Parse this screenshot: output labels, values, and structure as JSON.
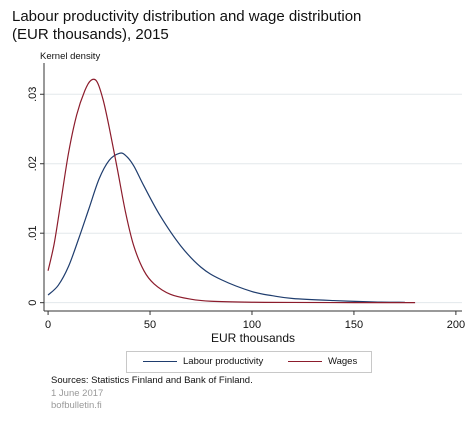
{
  "title_lines": [
    "Labour productivity distribution and wage distribution",
    "(EUR thousands), 2015"
  ],
  "footer": {
    "sources": "Sources: Statistics Finland and Bank of Finland.",
    "date": "1 June 2017",
    "site": "bofbulletin.fi"
  },
  "colors": {
    "productivity": "#1f3d6e",
    "wages": "#8c1c2c",
    "grid": "#e3e8ec",
    "axis": "#333333"
  },
  "chart_data": {
    "type": "line",
    "title": "Labour productivity distribution and wage distribution (EUR thousands), 2015",
    "xlabel": "EUR thousands",
    "ylabel": "Kernel density",
    "xlim": [
      -2,
      203
    ],
    "ylim": [
      -0.0012,
      0.0345
    ],
    "xticks": [
      0,
      50,
      100,
      150,
      200
    ],
    "yticks": [
      0,
      0.01,
      0.02,
      0.03
    ],
    "ytick_labels": [
      "0",
      ".01",
      ".02",
      ".03"
    ],
    "grid": true,
    "legend_position": "bottom",
    "series": [
      {
        "name": "Labour productivity",
        "color": "#1f3d6e",
        "x": [
          0,
          5,
          10,
          15,
          20,
          25,
          30,
          35,
          38,
          42,
          47,
          55,
          65,
          75,
          85,
          100,
          110,
          120,
          140,
          160,
          175
        ],
        "y": [
          0.0011,
          0.0025,
          0.0052,
          0.0092,
          0.0135,
          0.0178,
          0.0205,
          0.0215,
          0.0212,
          0.0197,
          0.0168,
          0.0125,
          0.0082,
          0.0051,
          0.0033,
          0.0016,
          0.001,
          0.0006,
          0.0003,
          0.0001,
          5e-05
        ]
      },
      {
        "name": "Wages",
        "color": "#8c1c2c",
        "x": [
          0,
          3,
          6,
          10,
          14,
          18,
          21,
          24,
          27,
          30,
          34,
          38,
          42,
          47,
          52,
          60,
          70,
          80,
          100,
          120,
          150,
          180
        ],
        "y": [
          0.0046,
          0.0085,
          0.014,
          0.0215,
          0.027,
          0.0305,
          0.032,
          0.0318,
          0.0292,
          0.0252,
          0.0192,
          0.013,
          0.0082,
          0.0046,
          0.0027,
          0.0012,
          0.0005,
          0.0002,
          6e-05,
          3e-05,
          1e-05,
          0.0
        ]
      }
    ]
  }
}
